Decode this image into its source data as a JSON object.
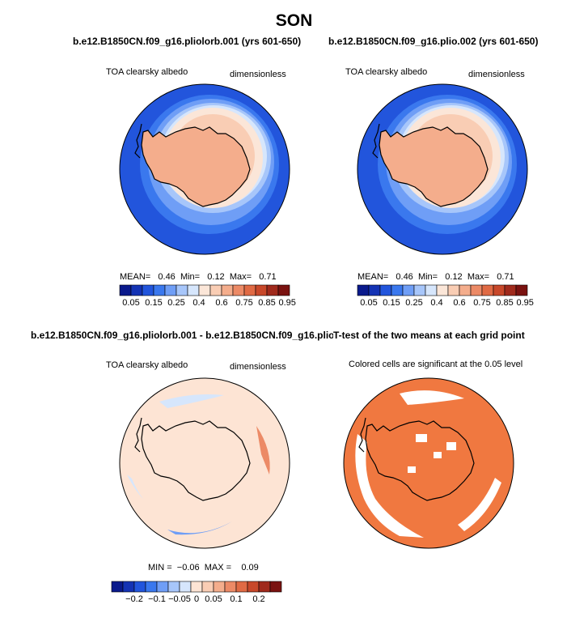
{
  "season": "SON",
  "panels": [
    {
      "title": "b.e12.B1850CN.f09_g16.pliolorb.001 (yrs 601-650)",
      "variable": "TOA clearsky albedo",
      "units": "dimensionless",
      "stats": {
        "mean_label": "MEAN=",
        "mean": "0.46",
        "min_label": "Min=",
        "min": "0.12",
        "max_label": "Max=",
        "max": "0.71"
      }
    },
    {
      "title": "b.e12.B1850CN.f09_g16.plio.002 (yrs 601-650)",
      "variable": "TOA clearsky albedo",
      "units": "dimensionless",
      "stats": {
        "mean_label": "MEAN=",
        "mean": "0.46",
        "min_label": "Min=",
        "min": "0.12",
        "max_label": "Max=",
        "max": "0.71"
      }
    },
    {
      "title": "b.e12.B1850CN.f09_g16.pliolorb.001 - b.e12.B1850CN.f09_g16.plio.002",
      "variable": "TOA clearsky albedo",
      "units": "dimensionless",
      "stats": {
        "min_label": "MIN =",
        "min": "−0.06",
        "max_label": "MAX =",
        "max": "0.09"
      }
    },
    {
      "title": "T-test of the two means at each grid point",
      "note": "Colored cells are significant at the 0.05 level"
    }
  ],
  "colorbars": {
    "albedo": {
      "colors": [
        "#0a1a8c",
        "#1433b4",
        "#2255dc",
        "#3a78ee",
        "#6f9ef6",
        "#a7c6fa",
        "#d6e6fc",
        "#fbe6d8",
        "#f9cdb4",
        "#f4ad8c",
        "#ec8a66",
        "#e06a44",
        "#c8482a",
        "#a02a1c",
        "#7a1210"
      ],
      "tick_labels": [
        "0.05",
        "0.15",
        "0.25",
        "0.4",
        "0.6",
        "0.75",
        "0.85",
        "0.95"
      ]
    },
    "diff": {
      "colors": [
        "#0a1a8c",
        "#1433b4",
        "#2255dc",
        "#3a78ee",
        "#6f9ef6",
        "#a7c6fa",
        "#d6e6fc",
        "#fde4d4",
        "#f9cdb4",
        "#f4ad8c",
        "#ec8a66",
        "#e06a44",
        "#c8482a",
        "#a02a1c",
        "#7a1210"
      ],
      "tick_labels": [
        "−0.2",
        "−0.1",
        "−0.05",
        "0",
        "0.05",
        "0.1",
        "0.2"
      ]
    }
  },
  "colors": {
    "ocean_blue": "#2255dc",
    "mid_blue": "#6f9ef6",
    "light_blue": "#d6e6fc",
    "pale_peach": "#fbe6d8",
    "peach": "#f9cdb4",
    "salmon": "#f4ad8c",
    "diff_bg": "#fde4d4",
    "signif": "#f07840"
  }
}
